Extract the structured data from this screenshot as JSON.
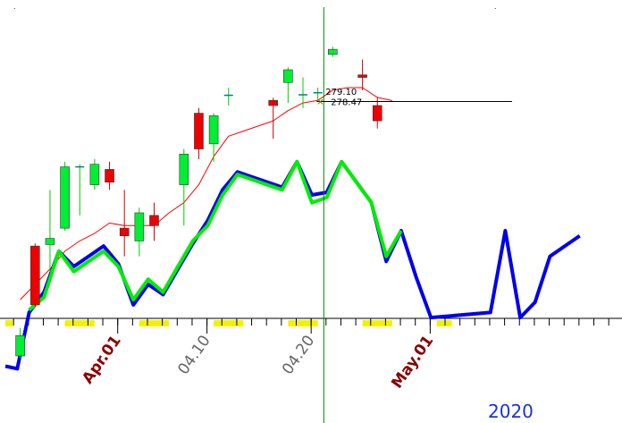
{
  "chart_data": {
    "type": "candlestick",
    "price_axis": {
      "min": 225,
      "max": 295
    },
    "price_labels": [
      "279.10",
      "278.47"
    ],
    "price_label_values": [
      279.1,
      278.47
    ],
    "year_label": "2020",
    "x_tick_labels": [
      {
        "text": "Apr.01",
        "slot": 7,
        "style": "month"
      },
      {
        "text": "04.10",
        "slot": 13,
        "style": "day"
      },
      {
        "text": "04.20",
        "slot": 20,
        "style": "day"
      },
      {
        "text": "May.01",
        "slot": 28,
        "style": "month"
      }
    ],
    "cursor_slot": 21.4,
    "highlight_slot_ranges": [
      [
        0,
        0.5
      ],
      [
        4,
        6
      ],
      [
        9,
        11
      ],
      [
        14,
        16
      ],
      [
        19,
        21
      ],
      [
        24,
        26
      ],
      [
        29,
        30
      ]
    ],
    "candles": [
      {
        "slot": 1,
        "open": 228.5,
        "close": 232.5,
        "high": 234.0,
        "low": 228.0
      },
      {
        "slot": 2,
        "open": 250.0,
        "close": 238.5,
        "high": 250.5,
        "low": 238.0
      },
      {
        "slot": 3,
        "open": 250.3,
        "close": 251.5,
        "high": 261.0,
        "low": 245.0
      },
      {
        "slot": 4,
        "open": 253.5,
        "close": 265.5,
        "high": 266.5,
        "low": 253.0
      },
      {
        "slot": 5,
        "open": 265.5,
        "close": 265.5,
        "high": 266.0,
        "low": 256.0
      },
      {
        "slot": 6,
        "open": 262.0,
        "close": 266.0,
        "high": 267.0,
        "low": 261.0
      },
      {
        "slot": 7,
        "open": 265.0,
        "close": 262.5,
        "high": 266.5,
        "low": 261.0
      },
      {
        "slot": 8,
        "open": 253.5,
        "close": 252.0,
        "high": 261.0,
        "low": 248.0
      },
      {
        "slot": 9,
        "open": 251.0,
        "close": 256.5,
        "high": 257.5,
        "low": 248.0
      },
      {
        "slot": 10,
        "open": 256.0,
        "close": 254.0,
        "high": 258.5,
        "low": 251.0
      },
      {
        "slot": 12,
        "open": 262.0,
        "close": 268.0,
        "high": 269.0,
        "low": 254.0
      },
      {
        "slot": 13,
        "open": 276.0,
        "close": 269.0,
        "high": 277.0,
        "low": 267.0
      },
      {
        "slot": 14,
        "open": 270.0,
        "close": 275.5,
        "high": 276.0,
        "low": 266.5
      },
      {
        "slot": 15,
        "open": 279.5,
        "close": 279.5,
        "high": 281.0,
        "low": 277.5
      },
      {
        "slot": 18,
        "open": 278.5,
        "close": 277.5,
        "high": 279.0,
        "low": 271.0
      },
      {
        "slot": 19,
        "open": 282.0,
        "close": 284.5,
        "high": 285.0,
        "low": 278.0
      },
      {
        "slot": 20,
        "open": 279.6,
        "close": 279.6,
        "high": 283.0,
        "low": 277.0
      },
      {
        "slot": 21,
        "open": 280.0,
        "close": 280.0,
        "high": 281.0,
        "low": 278.5
      },
      {
        "slot": 22,
        "open": 287.5,
        "close": 288.5,
        "high": 289.0,
        "low": 287.0
      },
      {
        "slot": 24,
        "open": 283.5,
        "close": 283.0,
        "high": 286.5,
        "low": 280.5
      },
      {
        "slot": 25,
        "open": 277.5,
        "close": 274.5,
        "high": 279.0,
        "low": 273.0
      }
    ],
    "series": [
      {
        "name": "",
        "color": "#ff0000",
        "width": 1,
        "points": [
          [
            1,
            239.5
          ],
          [
            2,
            242.5
          ],
          [
            3,
            245.5
          ],
          [
            4,
            249.0
          ],
          [
            5,
            251.0
          ],
          [
            6,
            252.5
          ],
          [
            7,
            254.5
          ],
          [
            8,
            254.0
          ],
          [
            9,
            254.0
          ],
          [
            10,
            254.0
          ],
          [
            11,
            256.5
          ],
          [
            12,
            258.5
          ],
          [
            13,
            262.0
          ],
          [
            14,
            267.5
          ],
          [
            15,
            271.5
          ],
          [
            16,
            272.5
          ],
          [
            17,
            273.5
          ],
          [
            18,
            274.5
          ],
          [
            19,
            276.5
          ],
          [
            20,
            278.0
          ],
          [
            21,
            278.5
          ],
          [
            22,
            280.5
          ],
          [
            23,
            281.0
          ],
          [
            24,
            281.0
          ],
          [
            25,
            279.1
          ],
          [
            26,
            278.47
          ]
        ]
      },
      {
        "name": "",
        "color": "#0000ee",
        "width": 4,
        "points": [
          [
            0,
            226.5
          ],
          [
            0.8,
            226.0
          ],
          [
            1.6,
            237.0
          ],
          [
            2.6,
            241.0
          ],
          [
            3.6,
            249.0
          ],
          [
            4.6,
            246.0
          ],
          [
            5.6,
            248.0
          ],
          [
            6.6,
            250.0
          ],
          [
            7.6,
            246.5
          ],
          [
            8.6,
            238.5
          ],
          [
            9.6,
            242.5
          ],
          [
            10.6,
            240.5
          ],
          [
            11.6,
            245.5
          ],
          [
            12.6,
            250.5
          ],
          [
            13.6,
            255.0
          ],
          [
            14.6,
            261.0
          ],
          [
            15.6,
            264.5
          ],
          [
            16.6,
            263.5
          ],
          [
            17.6,
            262.5
          ],
          [
            18.6,
            261.5
          ],
          [
            19.6,
            266.5
          ],
          [
            20.6,
            260.0
          ],
          [
            21.6,
            260.5
          ],
          [
            22.6,
            266.5
          ],
          [
            23.6,
            262.5
          ],
          [
            24.6,
            258.5
          ],
          [
            25.6,
            247.0
          ],
          [
            26.6,
            253.0
          ],
          [
            27.6,
            244.0
          ],
          [
            28.6,
            236.0
          ],
          [
            30.6,
            236.5
          ],
          [
            32.6,
            237.0
          ],
          [
            33.6,
            253.0
          ],
          [
            34.6,
            236.0
          ],
          [
            35.6,
            239.0
          ],
          [
            36.6,
            248.0
          ],
          [
            38.6,
            252.0
          ]
        ]
      },
      {
        "name": "",
        "color": "#00ee00",
        "width": 4,
        "points": [
          [
            1.6,
            237.5
          ],
          [
            2.6,
            240.0
          ],
          [
            3.6,
            249.0
          ],
          [
            4.6,
            245.0
          ],
          [
            5.6,
            247.0
          ],
          [
            6.6,
            249.0
          ],
          [
            7.6,
            246.0
          ],
          [
            8.6,
            239.5
          ],
          [
            9.6,
            243.5
          ],
          [
            10.6,
            241.0
          ],
          [
            11.6,
            246.0
          ],
          [
            12.6,
            251.0
          ],
          [
            13.6,
            254.0
          ],
          [
            14.6,
            260.0
          ],
          [
            15.6,
            264.0
          ],
          [
            16.6,
            263.0
          ],
          [
            17.6,
            262.0
          ],
          [
            18.6,
            261.0
          ],
          [
            19.6,
            266.5
          ],
          [
            20.6,
            258.5
          ],
          [
            21.6,
            259.5
          ],
          [
            22.6,
            266.5
          ],
          [
            23.6,
            262.5
          ],
          [
            24.6,
            258.5
          ],
          [
            25.6,
            248.0
          ],
          [
            26.6,
            253.0
          ]
        ]
      }
    ]
  }
}
